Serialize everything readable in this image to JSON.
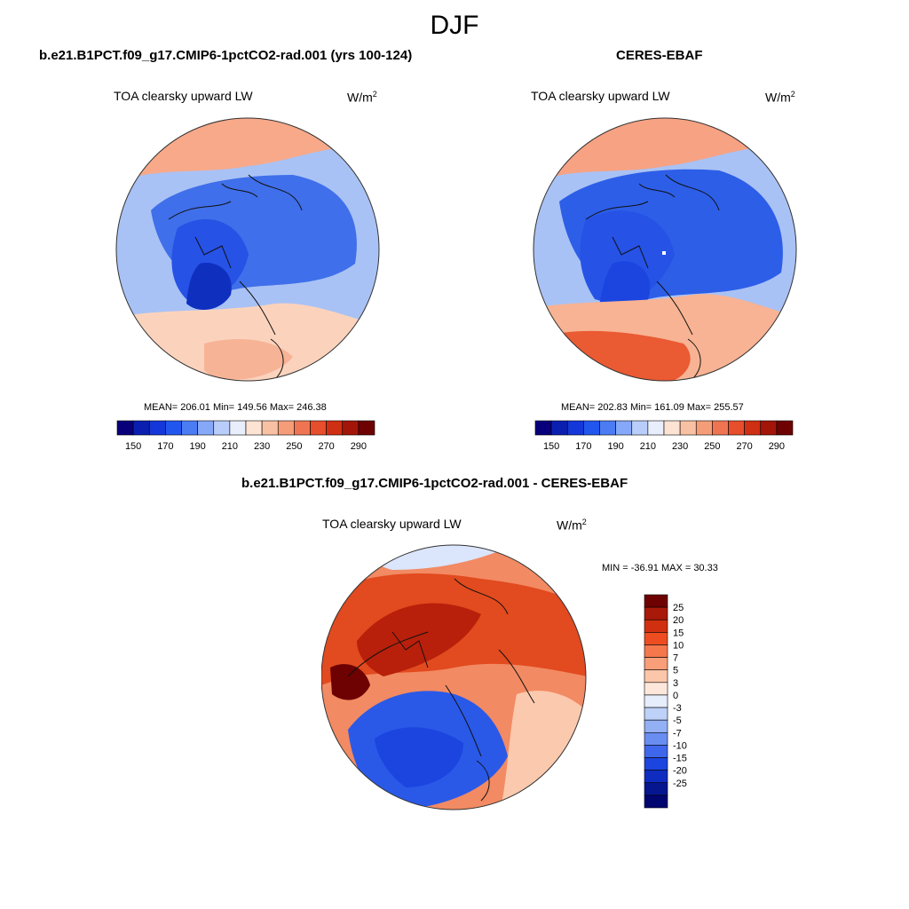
{
  "figure": {
    "season": "DJF"
  },
  "panels": {
    "model": {
      "title": "b.e21.B1PCT.f09_g17.CMIP6-1pctCO2-rad.001 (yrs 100-124)",
      "variable": "TOA clearsky upward LW",
      "units_base": "W/m",
      "units_exp": "2",
      "stats": "MEAN= 206.01  Min= 149.56  Max= 246.38"
    },
    "obs": {
      "title": "CERES-EBAF",
      "variable": "TOA clearsky upward LW",
      "units_base": "W/m",
      "units_exp": "2",
      "stats": "MEAN= 202.83  Min= 161.09  Max= 255.57"
    },
    "diff": {
      "title": "b.e21.B1PCT.f09_g17.CMIP6-1pctCO2-rad.001 - CERES-EBAF",
      "variable": "TOA clearsky upward LW",
      "units_base": "W/m",
      "units_exp": "2",
      "stats": "MIN = -36.91 MAX =  30.33"
    }
  },
  "colorbars": {
    "abs": {
      "colors": [
        "#08007a",
        "#0a1fb0",
        "#1437d9",
        "#2156ee",
        "#4b7cf4",
        "#85a8f8",
        "#b9cdfb",
        "#e9eefc",
        "#fde3d3",
        "#f9c1a3",
        "#f59d78",
        "#ef7552",
        "#e64e2c",
        "#cf2f12",
        "#a31509",
        "#6e0202"
      ],
      "labels": [
        "150",
        "170",
        "190",
        "210",
        "230",
        "250",
        "270",
        "290"
      ]
    },
    "diff": {
      "colors": [
        "#6e0202",
        "#a8190a",
        "#d0300f",
        "#ed4d21",
        "#f4784c",
        "#f89e78",
        "#fcc6aa",
        "#fce7da",
        "#e6eefc",
        "#bed1f8",
        "#93b0f4",
        "#6a8df1",
        "#3f67ec",
        "#1c45df",
        "#0e2dc0",
        "#06168f",
        "#010570"
      ],
      "labels": [
        "25",
        "20",
        "15",
        "10",
        "7",
        "5",
        "3",
        "0",
        "-3",
        "-5",
        "-7",
        "-10",
        "-15",
        "-20",
        "-25"
      ]
    }
  },
  "map_fields": {
    "model": {
      "base": "#a9c2f5",
      "regions": [
        {
          "color": "#f7a989",
          "region": "north-pacific-siberia-rim"
        },
        {
          "color": "#fcd9c8",
          "region": "east-asia-rim"
        },
        {
          "color": "#3f6fea",
          "region": "central-arctic"
        },
        {
          "color": "#2652e6",
          "region": "canadian-archipelago"
        },
        {
          "color": "#0f2fbf",
          "region": "greenland-core"
        },
        {
          "color": "#fbd3bd",
          "region": "north-atlantic"
        },
        {
          "color": "#f6b396",
          "region": "scandinavia-atlantic"
        }
      ]
    },
    "obs": {
      "base": "#a9c2f5",
      "regions": [
        {
          "color": "#f6a283",
          "region": "north-pacific-siberia-rim"
        },
        {
          "color": "#fbcdb6",
          "region": "east-asia-rim"
        },
        {
          "color": "#2d5ee8",
          "region": "central-arctic"
        },
        {
          "color": "#2652e6",
          "region": "canadian-archipelago"
        },
        {
          "color": "#1c45df",
          "region": "greenland-core"
        },
        {
          "color": "#f7b393",
          "region": "north-atlantic"
        },
        {
          "color": "#ea5a33",
          "region": "scandinavia-atlantic"
        }
      ]
    },
    "diff": {
      "base": "#f28a63",
      "regions": [
        {
          "color": "#e24a1f",
          "region": "pacific-sector"
        },
        {
          "color": "#b8200b",
          "region": "north-america-core"
        },
        {
          "color": "#6e0202",
          "region": "labrador-max"
        },
        {
          "color": "#2a59e8",
          "region": "greenland-atlantic"
        },
        {
          "color": "#1c45df",
          "region": "greenland-core"
        },
        {
          "color": "#fbc9ad",
          "region": "eurasia-south"
        },
        {
          "color": "#dbe5fb",
          "region": "pacific-rim"
        }
      ]
    }
  }
}
